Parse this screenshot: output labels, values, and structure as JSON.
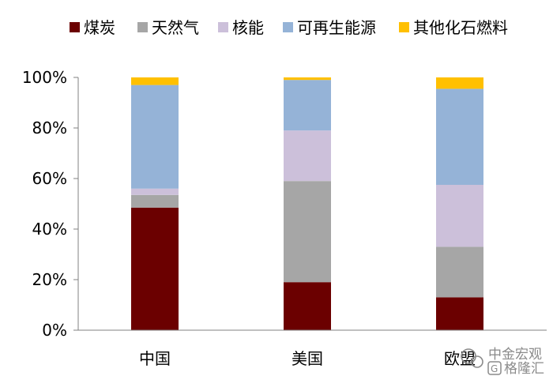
{
  "chart_data": {
    "type": "bar",
    "stacked": true,
    "categories": [
      "中国",
      "美国",
      "欧盟"
    ],
    "series": [
      {
        "name": "煤炭",
        "color": "#6b0000",
        "values": [
          48.5,
          19,
          13
        ]
      },
      {
        "name": "天然气",
        "color": "#a6a6a6",
        "values": [
          5,
          40,
          20
        ]
      },
      {
        "name": "核能",
        "color": "#ccc0da",
        "values": [
          2.5,
          20,
          24.5
        ]
      },
      {
        "name": "可再生能源",
        "color": "#95b3d7",
        "values": [
          41,
          20,
          38
        ]
      },
      {
        "name": "其他化石燃料",
        "color": "#ffc000",
        "values": [
          3,
          1,
          4.5
        ]
      }
    ],
    "yticks": [
      "0%",
      "20%",
      "40%",
      "60%",
      "80%",
      "100%"
    ],
    "ylim": [
      0,
      100
    ],
    "grid": false,
    "legend_position": "top"
  },
  "watermark": {
    "line1": "中金宏观",
    "line2": "格隆汇",
    "icon": "wechat-icon"
  }
}
